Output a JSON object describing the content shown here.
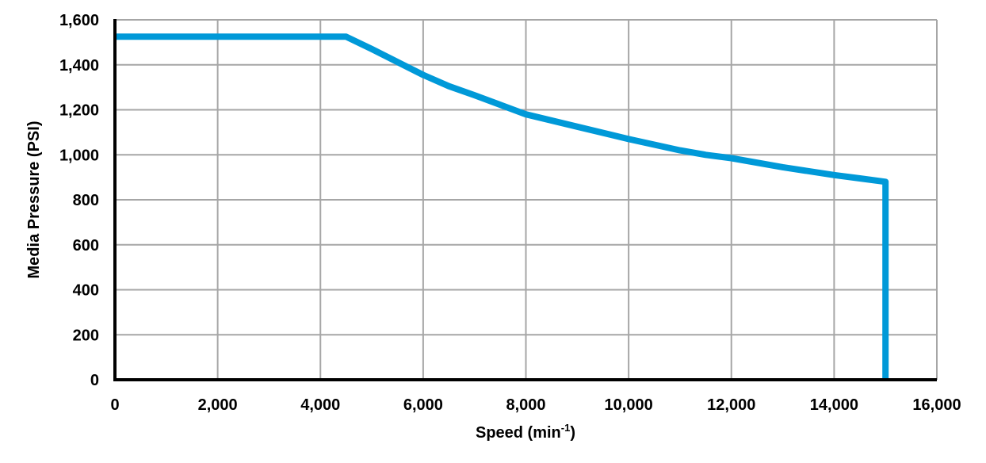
{
  "chart_data": {
    "type": "line",
    "title": "",
    "xlabel": "Speed (min-1)",
    "xlabel_parts": {
      "base": "Speed (min",
      "sup": "-1",
      "close": ")"
    },
    "ylabel": "Media Pressure (PSI)",
    "xlim": [
      0,
      16000
    ],
    "ylim": [
      0,
      1600
    ],
    "x_ticks": [
      0,
      2000,
      4000,
      6000,
      8000,
      10000,
      12000,
      14000,
      16000
    ],
    "x_tick_labels": [
      "0",
      "2,000",
      "4,000",
      "6,000",
      "8,000",
      "10,000",
      "12,000",
      "14,000",
      "16,000"
    ],
    "y_ticks": [
      0,
      200,
      400,
      600,
      800,
      1000,
      1200,
      1400,
      1600
    ],
    "y_tick_labels": [
      "0",
      "200",
      "400",
      "600",
      "800",
      "1,000",
      "1,200",
      "1,400",
      "1,600"
    ],
    "grid": true,
    "legend": null,
    "series": [
      {
        "name": "Media Pressure",
        "color": "#0099d8",
        "x": [
          0,
          4500,
          5000,
          6000,
          6500,
          7000,
          8000,
          9000,
          10000,
          11000,
          11500,
          12000,
          13000,
          14000,
          14500,
          15000,
          15000
        ],
        "y": [
          1525,
          1525,
          1470,
          1355,
          1305,
          1265,
          1180,
          1125,
          1070,
          1020,
          1000,
          985,
          945,
          910,
          895,
          880,
          0
        ]
      }
    ]
  },
  "colors": {
    "line": "#0099d8",
    "grid": "#a6a6a6",
    "axis": "#000000",
    "background": "#ffffff"
  }
}
